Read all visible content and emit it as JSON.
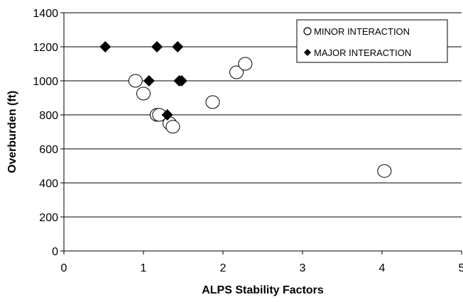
{
  "chart_data": {
    "type": "scatter",
    "xlabel": "ALPS Stability Factors",
    "ylabel": "Overburden (ft)",
    "xlim": [
      0,
      5
    ],
    "ylim": [
      0,
      1400
    ],
    "x_ticks": [
      "0",
      "1",
      "2",
      "3",
      "4",
      "5"
    ],
    "y_ticks": [
      "0",
      "200",
      "400",
      "600",
      "800",
      "1000",
      "1200",
      "1400"
    ],
    "grid": "horizontal",
    "legend_position": "top-right",
    "series": [
      {
        "name": "MINOR INTERACTION",
        "marker": "open-circle",
        "points": [
          {
            "x": 0.9,
            "y": 1000
          },
          {
            "x": 1.0,
            "y": 925
          },
          {
            "x": 1.17,
            "y": 800
          },
          {
            "x": 1.2,
            "y": 800
          },
          {
            "x": 1.33,
            "y": 750
          },
          {
            "x": 1.37,
            "y": 730
          },
          {
            "x": 1.87,
            "y": 875
          },
          {
            "x": 2.17,
            "y": 1050
          },
          {
            "x": 2.28,
            "y": 1100
          },
          {
            "x": 4.03,
            "y": 470
          }
        ]
      },
      {
        "name": "MAJOR INTERACTION",
        "marker": "filled-diamond",
        "color": "#000000",
        "points": [
          {
            "x": 0.52,
            "y": 1200
          },
          {
            "x": 1.17,
            "y": 1200
          },
          {
            "x": 1.43,
            "y": 1200
          },
          {
            "x": 1.07,
            "y": 1000
          },
          {
            "x": 1.45,
            "y": 1000
          },
          {
            "x": 1.48,
            "y": 1000
          },
          {
            "x": 1.3,
            "y": 800
          }
        ]
      }
    ]
  }
}
